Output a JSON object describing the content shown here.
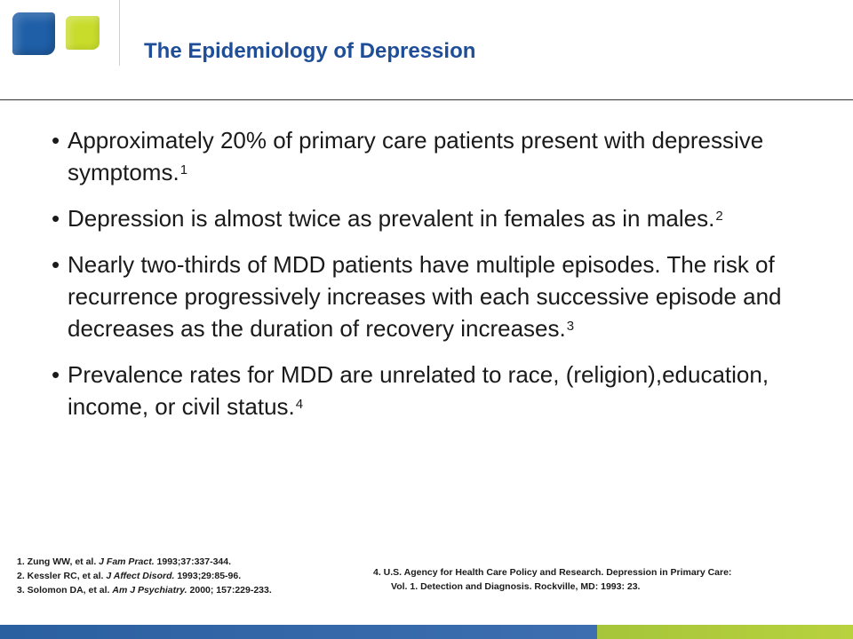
{
  "title": "The Epidemiology of Depression",
  "bullets": [
    {
      "text": "Approximately 20% of primary care patients present with depressive symptoms.",
      "ref": "1"
    },
    {
      "text": "Depression is almost twice as prevalent in females as in males.",
      "ref": "2"
    },
    {
      "text": "Nearly two-thirds of MDD patients have multiple episodes. The risk of recurrence progressively increases with each successive episode and decreases as the duration of recovery increases.",
      "ref": "3"
    },
    {
      "text": "Prevalence rates for MDD are unrelated to race, (religion),education, income, or civil status.",
      "ref": "4"
    }
  ],
  "references_left": [
    {
      "pre": "1.  Zung WW, et al. ",
      "journal": "J Fam Pract.",
      "post": " 1993;37:337-344."
    },
    {
      "pre": "2.  Kessler RC, et al.  ",
      "journal": "J Affect Disord.",
      "post": " 1993;29:85-96."
    },
    {
      "pre": "3.  Solomon DA, et al. ",
      "journal": "Am J Psychiatry.",
      "post": " 2000; 157:229-233."
    }
  ],
  "references_right": {
    "line1": "4.  U.S. Agency for Health Care Policy and Research. Depression in Primary Care:",
    "line2": "Vol. 1. Detection and Diagnosis. Rockville, MD: 1993: 23."
  },
  "colors": {
    "title": "#1f4e99",
    "logo_blue": "#1f5fa8",
    "logo_green": "#c7dc2b",
    "bar_blue": "#2a5fa0",
    "bar_green": "#a6c53a"
  }
}
